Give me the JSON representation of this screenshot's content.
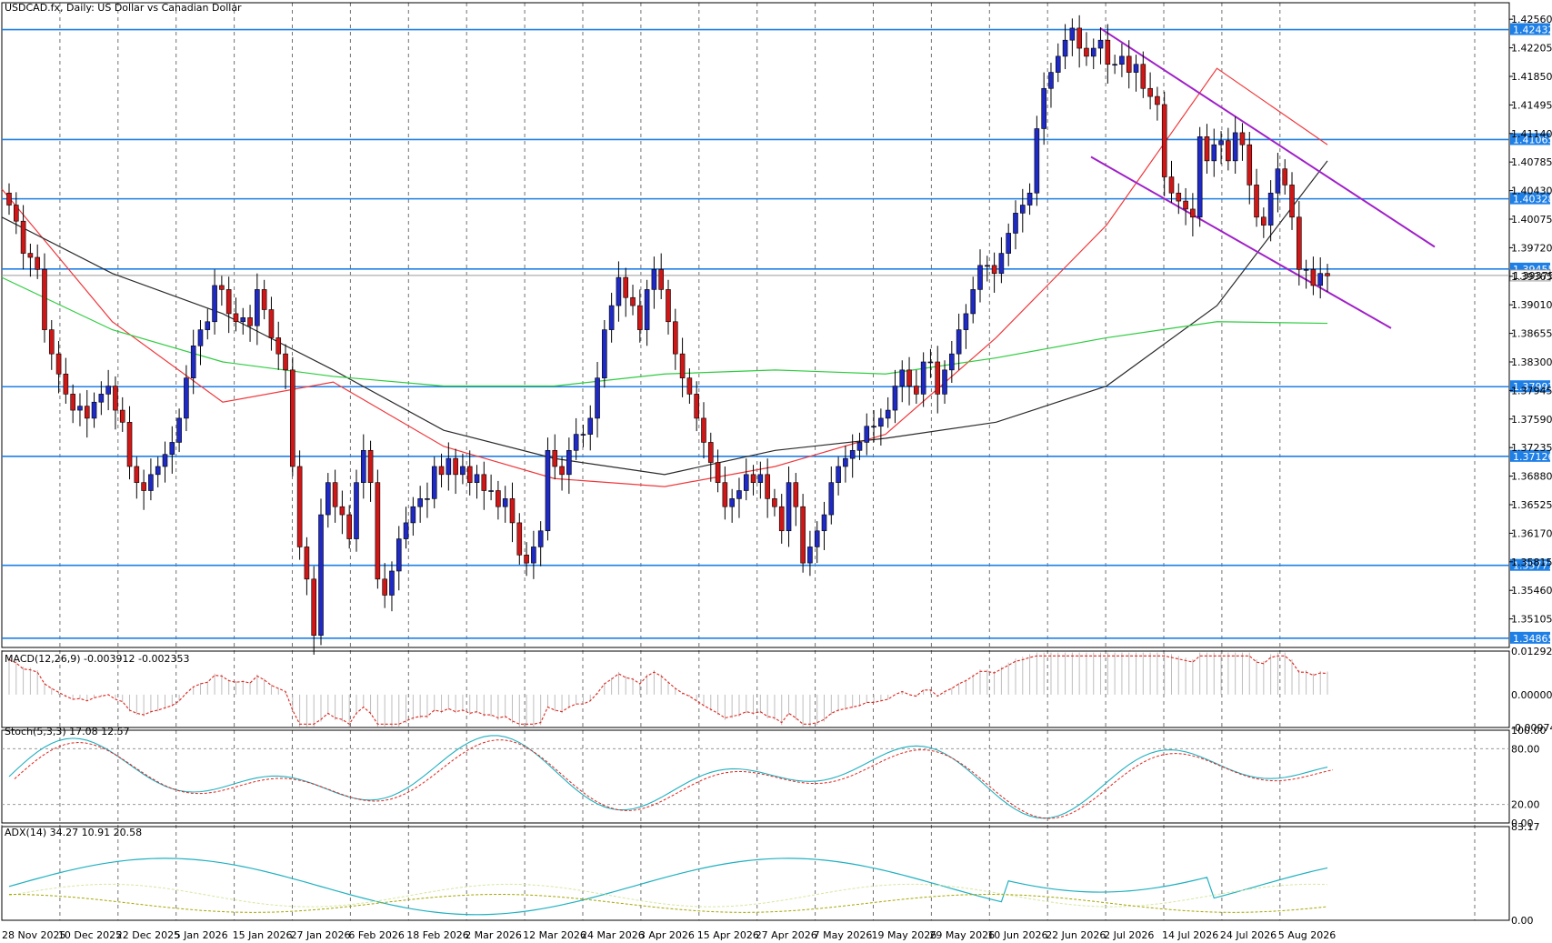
{
  "colors": {
    "bull": "#1f2ac4",
    "bear": "#d01717",
    "hline": "#1e7fe6",
    "channel": "#a020c8",
    "ma_fast": "#f0383c",
    "ma_mid": "#2b2b2b",
    "ma_slow": "#2ecc40",
    "macd_hist": "#bdbdbd",
    "macd_signal": "#e0241c",
    "stoch_main": "#1fb0c0",
    "stoch_signal": "#e0241c",
    "adx_main": "#1fb0c0",
    "adx_plus": "#d6e6a0",
    "adx_minus": "#a6a600"
  },
  "main_title": "USDCAD.fx, Daily:  US Dollar vs Canadian Dollar",
  "macd_title": "MACD(12,26,9) -0.003912 -0.002353",
  "stoch_title": "Stoch(5,3,3) 17.08 12.57",
  "adx_title": "ADX(14) 34.27 10.91 20.58",
  "price_axis": [
    "1.42560",
    "1.42205",
    "1.41850",
    "1.41495",
    "1.41140",
    "1.40785",
    "1.40430",
    "1.40075",
    "1.39720",
    "1.39365",
    "1.39010",
    "1.38655",
    "1.38300",
    "1.37945",
    "1.37590",
    "1.37235",
    "1.36880",
    "1.36525",
    "1.36170",
    "1.35815",
    "1.35460",
    "1.35105"
  ],
  "hline_labels": [
    "1.42432",
    "1.41065",
    "1.40328",
    "1.39455",
    "1.37992",
    "1.37126",
    "1.35771",
    "1.34865"
  ],
  "current_label": "1.39375",
  "macd_axis": [
    "0.012920",
    "0.000000",
    "-0.009741"
  ],
  "stoch_axis": [
    "100.00",
    "80.00",
    "20.00",
    "0.00"
  ],
  "adx_axis": [
    "83.17",
    "0.00"
  ],
  "date_labels": [
    "28 Nov 2025",
    "10 Dec 2025",
    "22 Dec 2025",
    "5 Jan 2026",
    "15 Jan 2026",
    "27 Jan 2026",
    "6 Feb 2026",
    "18 Feb 2026",
    "2 Mar 2026",
    "12 Mar 2026",
    "24 Mar 2026",
    "3 Apr 2026",
    "15 Apr 2026",
    "27 Apr 2026",
    "7 May 2026",
    "19 May 2026",
    "29 May 2026",
    "10 Jun 2026",
    "22 Jun 2026",
    "2 Jul 2026",
    "14 Jul 2026",
    "24 Jul 2026",
    "5 Aug 2026"
  ],
  "chart_data": {
    "type": "candlestick",
    "symbol": "USDCAD.fx",
    "timeframe": "Daily",
    "ylim": [
      1.3475,
      1.4263
    ],
    "horizontal_levels": [
      1.42432,
      1.41065,
      1.40328,
      1.39455,
      1.37992,
      1.37126,
      1.35771,
      1.34865
    ],
    "last_price": 1.39375,
    "closes": [
      1.4025,
      1.4005,
      1.3965,
      1.396,
      1.3945,
      1.387,
      1.384,
      1.3815,
      1.379,
      1.377,
      1.3775,
      1.376,
      1.378,
      1.379,
      1.38,
      1.377,
      1.3755,
      1.37,
      1.368,
      1.367,
      1.369,
      1.37,
      1.3715,
      1.373,
      1.376,
      1.381,
      1.385,
      1.387,
      1.388,
      1.3925,
      1.392,
      1.389,
      1.388,
      1.3885,
      1.3875,
      1.392,
      1.3895,
      1.386,
      1.384,
      1.382,
      1.37,
      1.36,
      1.356,
      1.349,
      1.364,
      1.368,
      1.365,
      1.364,
      1.361,
      1.368,
      1.372,
      1.368,
      1.356,
      1.354,
      1.357,
      1.361,
      1.363,
      1.365,
      1.366,
      1.366,
      1.37,
      1.369,
      1.371,
      1.369,
      1.37,
      1.368,
      1.369,
      1.367,
      1.367,
      1.365,
      1.366,
      1.363,
      1.359,
      1.358,
      1.36,
      1.362,
      1.372,
      1.37,
      1.369,
      1.372,
      1.374,
      1.374,
      1.376,
      1.381,
      1.387,
      1.39,
      1.3935,
      1.391,
      1.39,
      1.387,
      1.392,
      1.3945,
      1.392,
      1.388,
      1.384,
      1.381,
      1.379,
      1.376,
      1.373,
      1.3705,
      1.368,
      1.365,
      1.366,
      1.367,
      1.369,
      1.368,
      1.369,
      1.366,
      1.365,
      1.362,
      1.368,
      1.365,
      1.358,
      1.36,
      1.362,
      1.364,
      1.368,
      1.37,
      1.371,
      1.372,
      1.373,
      1.375,
      1.375,
      1.376,
      1.377,
      1.38,
      1.382,
      1.38,
      1.379,
      1.383,
      1.383,
      1.379,
      1.382,
      1.384,
      1.387,
      1.389,
      1.392,
      1.395,
      1.395,
      1.394,
      1.3965,
      1.399,
      1.4015,
      1.4025,
      1.404,
      1.412,
      1.417,
      1.419,
      1.421,
      1.423,
      1.4245,
      1.422,
      1.421,
      1.422,
      1.423,
      1.42,
      1.42,
      1.421,
      1.419,
      1.42,
      1.417,
      1.416,
      1.415,
      1.406,
      1.404,
      1.403,
      1.402,
      1.401,
      1.411,
      1.408,
      1.41,
      1.4105,
      1.408,
      1.4115,
      1.41,
      1.405,
      1.401,
      1.4,
      1.404,
      1.407,
      1.405,
      1.401,
      1.3945,
      1.3945,
      1.3925,
      1.394,
      1.3937
    ],
    "moving_averages": [
      {
        "color": "#f0383c",
        "values": [
          1.4045,
          1.388,
          1.378,
          1.3805,
          1.3725,
          1.3685,
          1.3675,
          1.37,
          1.374,
          1.386,
          1.4,
          1.4195,
          1.41
        ]
      },
      {
        "color": "#2b2b2b",
        "values": [
          1.401,
          1.394,
          1.389,
          1.382,
          1.3745,
          1.371,
          1.369,
          1.372,
          1.3735,
          1.3755,
          1.38,
          1.39,
          1.408
        ]
      },
      {
        "color": "#2ecc40",
        "values": [
          1.3935,
          1.387,
          1.383,
          1.3812,
          1.38,
          1.38,
          1.3815,
          1.382,
          1.3815,
          1.3835,
          1.386,
          1.388,
          1.3878
        ]
      }
    ],
    "channel_upper": [
      [
        1.4245,
        1.3973
      ]
    ],
    "channel_lower": [
      [
        1.4085,
        1.3872
      ]
    ],
    "macd_ylim": [
      -0.009741,
      0.01292
    ],
    "stoch_ylim": [
      0,
      100
    ],
    "adx_ylim": [
      0,
      83.17
    ]
  }
}
